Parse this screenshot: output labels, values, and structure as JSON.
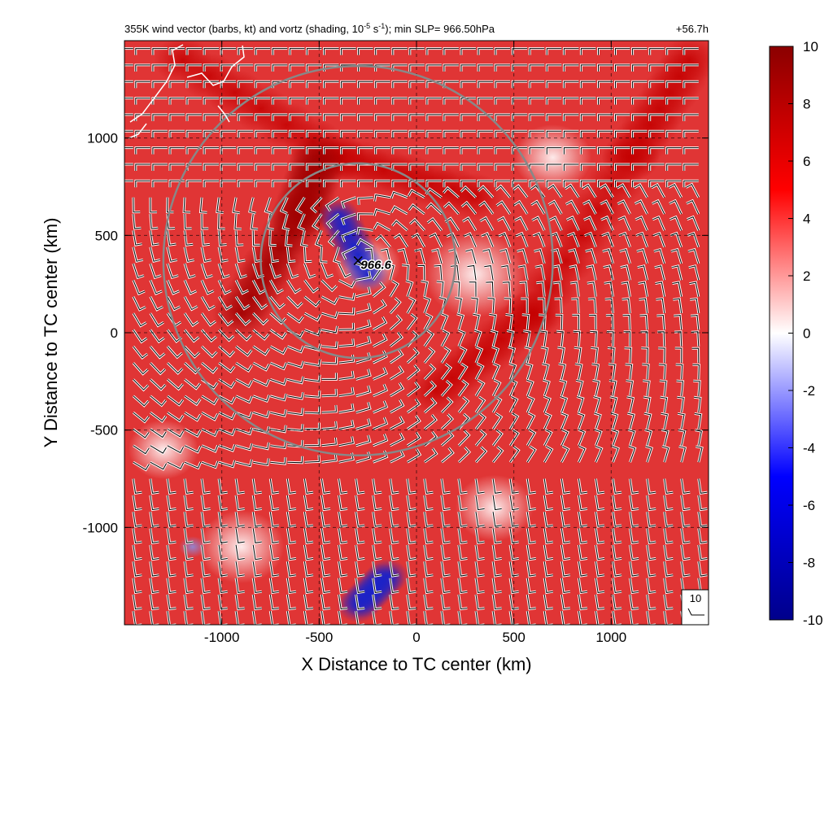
{
  "chart_data": {
    "type": "heatmap",
    "title": "355K wind vector (barbs, kt) and vortz (shading, 10",
    "title_exp": "-5",
    "title_mid": " s",
    "title_exp2": "-1",
    "title_end": "); min SLP= 966.50hPa",
    "time_label": "+56.7h",
    "xlabel": "X Distance to TC center (km)",
    "ylabel": "Y Distance to TC center (km)",
    "xlim": [
      -1500,
      1500
    ],
    "ylim": [
      -1500,
      1500
    ],
    "x_ticks": [
      -1000,
      -500,
      0,
      500,
      1000
    ],
    "y_ticks": [
      -1000,
      -500,
      0,
      500,
      1000
    ],
    "x_tick_labels": [
      "-1000",
      "-500",
      "0",
      "500",
      "1000"
    ],
    "y_tick_labels": [
      "-1000",
      "-500",
      "0",
      "500",
      "1000"
    ],
    "grid": true,
    "colorbar": {
      "min": -10,
      "max": 10,
      "ticks": [
        "10",
        "8",
        "6",
        "4",
        "2",
        "0",
        "-2",
        "-4",
        "-6",
        "-8",
        "-10"
      ],
      "colors": [
        "#00008b",
        "#0000ff",
        "#ffffff",
        "#ff0000",
        "#8b0000"
      ]
    },
    "tc_center": {
      "x": -300,
      "y": 370,
      "label": "966.6"
    },
    "range_rings_km": [
      500,
      1000
    ],
    "reference_barb": {
      "label": "10"
    },
    "features": [
      {
        "kind": "positive_band",
        "value": 8,
        "description_points": [
          [
            -1200,
            1400
          ],
          [
            -400,
            900
          ],
          [
            300,
            700
          ]
        ]
      },
      {
        "kind": "positive_band",
        "value": 9,
        "description_points": [
          [
            -900,
            100
          ],
          [
            -600,
            600
          ],
          [
            -500,
            900
          ]
        ]
      },
      {
        "kind": "positive_band",
        "value": 8,
        "description_points": [
          [
            1400,
            1400
          ],
          [
            1100,
            900
          ],
          [
            600,
            100
          ],
          [
            100,
            -300
          ]
        ]
      },
      {
        "kind": "negative_core",
        "value": -7,
        "description_points": [
          [
            -400,
            600
          ],
          [
            -250,
            300
          ]
        ]
      },
      {
        "kind": "negative_patch",
        "value": -8,
        "description_points": [
          [
            -300,
            -1400
          ],
          [
            -150,
            -1250
          ]
        ]
      },
      {
        "kind": "negative_patch",
        "value": -6,
        "description_points": [
          [
            -1150,
            -1100
          ]
        ]
      }
    ]
  }
}
